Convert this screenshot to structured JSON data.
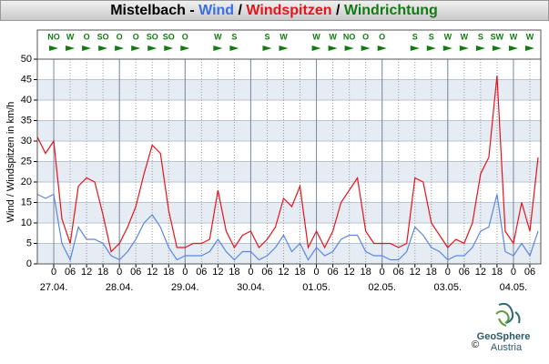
{
  "chart_data": {
    "type": "line",
    "title_prefix": "Mistelbach -",
    "title_separator": "/",
    "ylabel": "Wind / Windspitzen in km/h",
    "xlim": [
      -6,
      178
    ],
    "ylim": [
      0,
      50
    ],
    "yticks": [
      0,
      5,
      10,
      15,
      20,
      25,
      30,
      35,
      40,
      45,
      50
    ],
    "xticks": [
      0,
      {
        "value": 6,
        "label": "06"
      },
      12,
      18,
      {
        "value": 24,
        "label": "0"
      },
      {
        "value": 30,
        "label": "06"
      },
      {
        "value": 36,
        "label": "12"
      },
      {
        "value": 42,
        "label": "18"
      },
      {
        "value": 48,
        "label": "0"
      },
      {
        "value": 54,
        "label": "06"
      },
      {
        "value": 60,
        "label": "12"
      },
      {
        "value": 66,
        "label": "18"
      },
      {
        "value": 72,
        "label": "0"
      },
      {
        "value": 78,
        "label": "06"
      },
      {
        "value": 84,
        "label": "12"
      },
      {
        "value": 90,
        "label": "18"
      },
      {
        "value": 96,
        "label": "0"
      },
      {
        "value": 102,
        "label": "06"
      },
      {
        "value": 108,
        "label": "12"
      },
      {
        "value": 114,
        "label": "18"
      },
      {
        "value": 120,
        "label": "0"
      },
      {
        "value": 126,
        "label": "06"
      },
      {
        "value": 132,
        "label": "12"
      },
      {
        "value": 138,
        "label": "18"
      },
      {
        "value": 144,
        "label": "0"
      },
      {
        "value": 150,
        "label": "06"
      },
      {
        "value": 156,
        "label": "12"
      },
      {
        "value": 162,
        "label": "18"
      },
      {
        "value": 168,
        "label": "0"
      },
      {
        "value": 174,
        "label": "06"
      }
    ],
    "date_labels": [
      {
        "value": 0,
        "label": "27.04."
      },
      {
        "value": 24,
        "label": "28.04."
      },
      {
        "value": 48,
        "label": "29.04."
      },
      {
        "value": 72,
        "label": "30.04."
      },
      {
        "value": 96,
        "label": "01.05."
      },
      {
        "value": 120,
        "label": "02.05."
      },
      {
        "value": 144,
        "label": "03.05."
      },
      {
        "value": 168,
        "label": "04.05."
      }
    ],
    "x": [
      -6,
      -3,
      0,
      3,
      6,
      9,
      12,
      15,
      18,
      21,
      24,
      27,
      30,
      33,
      36,
      39,
      42,
      45,
      48,
      51,
      54,
      57,
      60,
      63,
      66,
      69,
      72,
      75,
      78,
      81,
      84,
      87,
      90,
      93,
      96,
      99,
      102,
      105,
      108,
      111,
      114,
      117,
      120,
      123,
      126,
      129,
      132,
      135,
      138,
      141,
      144,
      147,
      150,
      153,
      156,
      159,
      162,
      165,
      168,
      171,
      174,
      177
    ],
    "series": [
      {
        "name": "Wind",
        "color": "#5b87e0",
        "values": [
          17,
          16,
          17,
          5,
          1,
          9,
          6,
          6,
          5,
          2,
          1,
          3,
          6,
          10,
          12,
          9,
          4,
          1,
          2,
          2,
          2,
          3,
          6,
          3,
          1,
          3,
          3,
          1,
          2,
          4,
          7,
          3,
          5,
          1,
          4,
          2,
          3,
          6,
          7,
          7,
          3,
          2,
          2,
          1,
          1,
          3,
          9,
          7,
          4,
          3,
          1,
          2,
          2,
          4,
          8,
          9,
          17,
          3,
          2,
          5,
          2,
          8
        ]
      },
      {
        "name": "Windspitzen",
        "color": "#e8121a",
        "values": [
          31,
          27,
          30,
          11,
          5,
          19,
          21,
          20,
          12,
          3,
          5,
          9,
          14,
          22,
          29,
          27,
          13,
          4,
          4,
          5,
          5,
          6,
          18,
          8,
          4,
          7,
          8,
          4,
          6,
          9,
          16,
          14,
          19,
          4,
          8,
          4,
          8,
          15,
          18,
          21,
          8,
          5,
          5,
          5,
          4,
          5,
          21,
          20,
          10,
          7,
          4,
          6,
          5,
          10,
          22,
          26,
          46,
          8,
          5,
          15,
          8,
          26
        ]
      }
    ],
    "directions": {
      "name": "Windrichtung",
      "color": "#137a13",
      "x": [
        0,
        6,
        12,
        18,
        24,
        30,
        36,
        42,
        48,
        60,
        66,
        78,
        84,
        96,
        102,
        108,
        114,
        120,
        132,
        138,
        144,
        150,
        156,
        162,
        168,
        174
      ],
      "labels": [
        "NO",
        "W",
        "O",
        "SO",
        "O",
        "O",
        "SO",
        "SO",
        "O",
        "W",
        "S",
        "S",
        "W",
        "W",
        "W",
        "NO",
        "O",
        "O",
        "S",
        "S",
        "W",
        "W",
        "S",
        "SW",
        "W",
        "W"
      ]
    },
    "grid": true,
    "logo": {
      "name": "GeoSphere",
      "sub": "Austria",
      "copyright": "©"
    }
  }
}
